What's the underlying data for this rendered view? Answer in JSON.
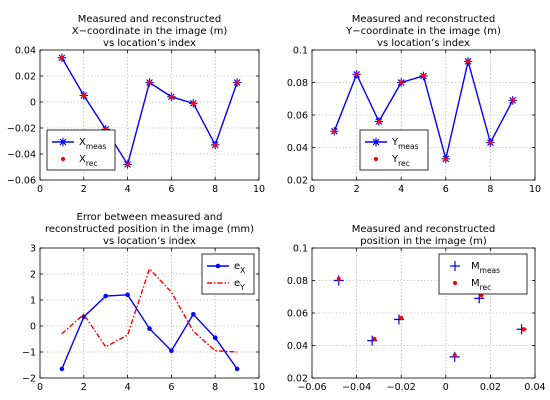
{
  "chart_data": [
    {
      "type": "line",
      "title": [
        "Measured and reconstructed",
        "X−coordinate in the image (m)",
        "vs location’s index"
      ],
      "xlim": [
        0,
        10
      ],
      "ylim": [
        -0.06,
        0.04
      ],
      "xticks": [
        0,
        2,
        4,
        6,
        8,
        10
      ],
      "yticks": [
        -0.06,
        -0.04,
        -0.02,
        0,
        0.02,
        0.04
      ],
      "xticklabels": [
        "0",
        "2",
        "4",
        "6",
        "8",
        "10"
      ],
      "yticklabels": [
        "−0.06",
        "−0.04",
        "−0.02",
        "0",
        "0.02",
        "0.04"
      ],
      "grid": true,
      "legend_position": "bottom-left",
      "series": [
        {
          "name": "X",
          "subscript": "meas",
          "color": "#0000ff",
          "style": "line-star",
          "x": [
            1,
            2,
            3,
            4,
            5,
            6,
            7,
            8,
            9
          ],
          "y": [
            0.034,
            0.005,
            -0.021,
            -0.048,
            0.015,
            0.004,
            -0.001,
            -0.033,
            0.015
          ]
        },
        {
          "name": "X",
          "subscript": "rec",
          "color": "#ff0000",
          "style": "dots",
          "x": [
            1,
            2,
            3,
            4,
            5,
            6,
            7,
            8,
            9
          ],
          "y": [
            0.034,
            0.005,
            -0.021,
            -0.048,
            0.015,
            0.004,
            -0.001,
            -0.033,
            0.015
          ]
        }
      ]
    },
    {
      "type": "line",
      "title": [
        "Measured and reconstructed",
        "Y−coordinate in the image (m)",
        "vs location’s index"
      ],
      "xlim": [
        0,
        10
      ],
      "ylim": [
        0.02,
        0.1
      ],
      "xticks": [
        0,
        2,
        4,
        6,
        8,
        10
      ],
      "yticks": [
        0.02,
        0.04,
        0.06,
        0.08,
        0.1
      ],
      "xticklabels": [
        "0",
        "2",
        "4",
        "6",
        "8",
        "10"
      ],
      "yticklabels": [
        "0.02",
        "0.04",
        "0.06",
        "0.08",
        "0.1"
      ],
      "grid": true,
      "legend_position": "bottom-left",
      "series": [
        {
          "name": "Y",
          "subscript": "meas",
          "color": "#0000ff",
          "style": "line-star",
          "x": [
            1,
            2,
            3,
            4,
            5,
            6,
            7,
            8,
            9
          ],
          "y": [
            0.05,
            0.085,
            0.056,
            0.08,
            0.084,
            0.033,
            0.093,
            0.043,
            0.069
          ]
        },
        {
          "name": "Y",
          "subscript": "rec",
          "color": "#ff0000",
          "style": "dots",
          "x": [
            1,
            2,
            3,
            4,
            5,
            6,
            7,
            8,
            9
          ],
          "y": [
            0.05,
            0.085,
            0.056,
            0.08,
            0.084,
            0.033,
            0.093,
            0.043,
            0.069
          ]
        }
      ]
    },
    {
      "type": "line",
      "title": [
        "Error between measured and",
        "reconstructed position in the image (mm)",
        "vs location’s index"
      ],
      "xlim": [
        0,
        10
      ],
      "ylim": [
        -2,
        3
      ],
      "xticks": [
        0,
        2,
        4,
        6,
        8,
        10
      ],
      "yticks": [
        -2,
        -1,
        0,
        1,
        2,
        3
      ],
      "xticklabels": [
        "0",
        "2",
        "4",
        "6",
        "8",
        "10"
      ],
      "yticklabels": [
        "−2",
        "−1",
        "0",
        "1",
        "2",
        "3"
      ],
      "grid": true,
      "legend_position": "top-right",
      "series": [
        {
          "name": "e",
          "subscript": "X",
          "color": "#0000ff",
          "style": "line-dot",
          "x": [
            1,
            2,
            3,
            4,
            5,
            6,
            7,
            8,
            9
          ],
          "y": [
            -1.65,
            0.35,
            1.15,
            1.2,
            -0.1,
            -0.95,
            0.45,
            -0.45,
            -1.65
          ]
        },
        {
          "name": "e",
          "subscript": "Y",
          "color": "#ff0000",
          "style": "dash-dot",
          "x": [
            1,
            2,
            3,
            4,
            5,
            6,
            7,
            8,
            9
          ],
          "y": [
            -0.3,
            0.45,
            -0.8,
            -0.35,
            2.2,
            1.3,
            -0.2,
            -0.95,
            -1.0
          ]
        }
      ]
    },
    {
      "type": "scatter",
      "title": [
        "Measured and reconstructed",
        "position in the image (m)"
      ],
      "xlim": [
        -0.06,
        0.04
      ],
      "ylim": [
        0.02,
        0.1
      ],
      "xticks": [
        -0.06,
        -0.04,
        -0.02,
        0,
        0.02,
        0.04
      ],
      "yticks": [
        0.02,
        0.04,
        0.06,
        0.08,
        0.1
      ],
      "xticklabels": [
        "−0.06",
        "−0.04",
        "−0.02",
        "0",
        "0.02",
        "0.04"
      ],
      "yticklabels": [
        "0.02",
        "0.04",
        "0.06",
        "0.08",
        "0.1"
      ],
      "grid": true,
      "legend_position": "top-right",
      "series": [
        {
          "name": "M",
          "subscript": "meas",
          "color": "#0000ff",
          "style": "plus",
          "x": [
            0.034,
            0.005,
            -0.021,
            -0.048,
            0.015,
            0.004,
            -0.001,
            -0.033,
            0.015
          ],
          "y": [
            0.05,
            0.085,
            0.056,
            0.08,
            0.084,
            0.033,
            0.093,
            0.043,
            0.069
          ]
        },
        {
          "name": "M",
          "subscript": "rec",
          "color": "#ff0000",
          "style": "dots",
          "x": [
            0.035,
            0.005,
            -0.02,
            -0.048,
            0.016,
            0.004,
            0.0,
            -0.032,
            0.016
          ],
          "y": [
            0.05,
            0.085,
            0.057,
            0.081,
            0.084,
            0.034,
            0.091,
            0.044,
            0.071
          ]
        }
      ]
    }
  ]
}
